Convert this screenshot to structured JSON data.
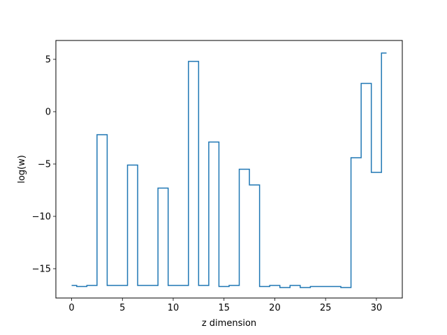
{
  "chart_data": {
    "type": "line",
    "step": "mid",
    "xlabel": "z dimension",
    "ylabel": "log(w)",
    "xlim": [
      -1.55,
      32.55
    ],
    "ylim": [
      -17.8,
      6.8
    ],
    "xticks": [
      0,
      5,
      10,
      15,
      20,
      25,
      30
    ],
    "xtick_labels": [
      "0",
      "5",
      "10",
      "15",
      "20",
      "25",
      "30"
    ],
    "yticks": [
      -15,
      -10,
      -5,
      0,
      5
    ],
    "ytick_labels": [
      "−15",
      "−10",
      "−5",
      "0",
      "5"
    ],
    "grid": false,
    "series": [
      {
        "color": "#1f77b4",
        "x": [
          0,
          1,
          2,
          3,
          4,
          5,
          6,
          7,
          8,
          9,
          10,
          11,
          12,
          13,
          14,
          15,
          16,
          17,
          18,
          19,
          20,
          21,
          22,
          23,
          24,
          25,
          26,
          27,
          28,
          29,
          30,
          31
        ],
        "y": [
          -16.6,
          -16.7,
          -16.6,
          -2.2,
          -16.6,
          -16.6,
          -5.1,
          -16.6,
          -16.6,
          -7.3,
          -16.6,
          -16.6,
          4.8,
          -16.6,
          -2.9,
          -16.7,
          -16.6,
          -5.5,
          -7.0,
          -16.7,
          -16.6,
          -16.8,
          -16.6,
          -16.8,
          -16.7,
          -16.7,
          -16.7,
          -16.8,
          -4.4,
          2.7,
          -5.8,
          5.6
        ]
      }
    ]
  }
}
